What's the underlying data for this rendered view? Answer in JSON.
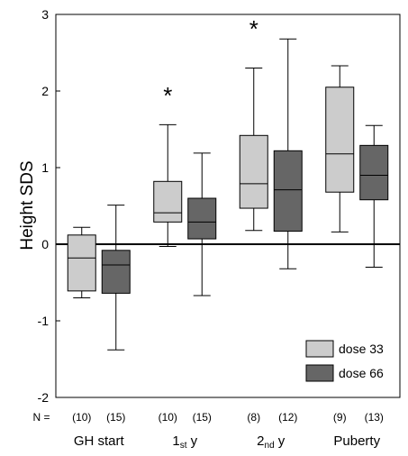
{
  "chart_data": {
    "type": "boxplot",
    "ylabel": "Height SDS",
    "ylim": [
      -2,
      3
    ],
    "yticks": [
      -2,
      -1,
      0,
      1,
      2,
      3
    ],
    "reference_line": 0,
    "grid": false,
    "legend_position": "bottom-right",
    "n_prefix": "N =",
    "categories": [
      {
        "label": "GH start",
        "label_sub": "",
        "label_suffix": ""
      },
      {
        "label": "1",
        "label_sub": "st",
        "label_suffix": " y"
      },
      {
        "label": "2",
        "label_sub": "nd",
        "label_suffix": " y"
      },
      {
        "label": "Puberty",
        "label_sub": "",
        "label_suffix": ""
      }
    ],
    "series": [
      {
        "name": "dose 33",
        "color": "#cccccc",
        "n": [
          "(10)",
          "(10)",
          "(8)",
          "(9)"
        ],
        "boxes": [
          {
            "min": -0.7,
            "q1": -0.61,
            "median": -0.18,
            "q3": 0.12,
            "max": 0.22
          },
          {
            "min": -0.03,
            "q1": 0.29,
            "median": 0.41,
            "q3": 0.82,
            "max": 1.56
          },
          {
            "min": 0.18,
            "q1": 0.47,
            "median": 0.79,
            "q3": 1.42,
            "max": 2.3
          },
          {
            "min": 0.16,
            "q1": 0.68,
            "median": 1.18,
            "q3": 2.05,
            "max": 2.33
          }
        ]
      },
      {
        "name": "dose 66",
        "color": "#666666",
        "n": [
          "(15)",
          "(15)",
          "(12)",
          "(13)"
        ],
        "boxes": [
          {
            "min": -1.38,
            "q1": -0.64,
            "median": -0.27,
            "q3": -0.08,
            "max": 0.51
          },
          {
            "min": -0.67,
            "q1": 0.07,
            "median": 0.29,
            "q3": 0.6,
            "max": 1.19
          },
          {
            "min": -0.32,
            "q1": 0.17,
            "median": 0.71,
            "q3": 1.22,
            "max": 2.68
          },
          {
            "min": -0.3,
            "q1": 0.58,
            "median": 0.9,
            "q3": 1.29,
            "max": 1.55
          }
        ]
      }
    ],
    "annotations": [
      {
        "text": "*",
        "category_index": 1,
        "y": 2.0
      },
      {
        "text": "*",
        "category_index": 2,
        "y": 2.87
      }
    ]
  }
}
